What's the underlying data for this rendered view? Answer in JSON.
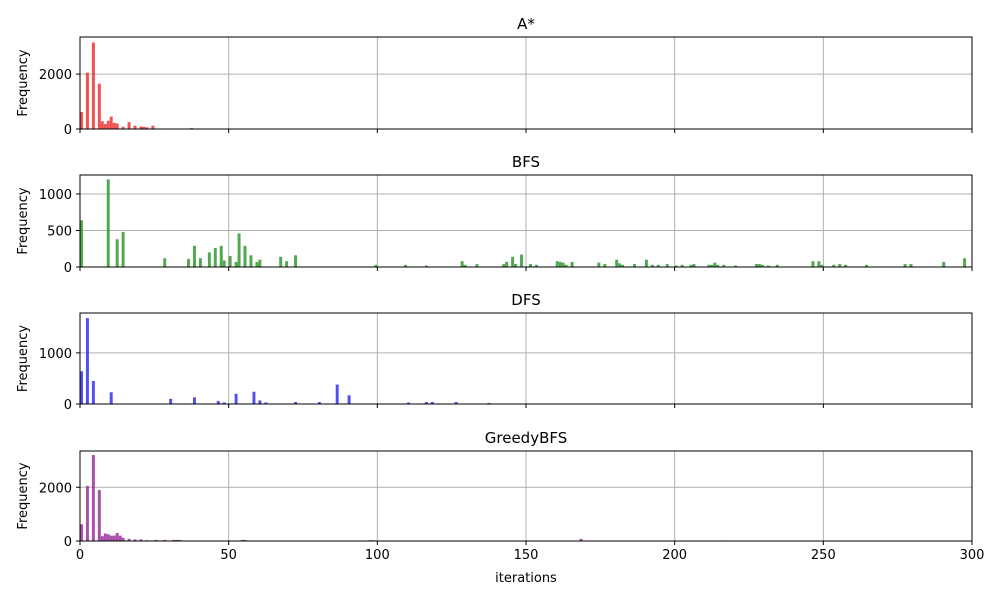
{
  "chart_data": [
    {
      "type": "bar",
      "title": "A*",
      "xlabel": "",
      "ylabel": "Frequency",
      "xlim": [
        0,
        300
      ],
      "ylim": [
        0,
        3350
      ],
      "xticks": [
        0,
        50,
        100,
        150,
        200,
        250,
        300
      ],
      "yticks": [
        0,
        2000
      ],
      "show_xtick_labels": false,
      "grid": true,
      "color": "#ee3333",
      "bin_width": 1,
      "x": [
        0,
        2,
        4,
        6,
        7,
        8,
        9,
        10,
        11,
        12,
        14,
        16,
        18,
        20,
        21,
        22,
        24,
        37
      ],
      "values": [
        620,
        2050,
        3150,
        1650,
        280,
        180,
        300,
        450,
        220,
        200,
        80,
        250,
        120,
        90,
        80,
        60,
        120,
        40
      ]
    },
    {
      "type": "bar",
      "title": "BFS",
      "xlabel": "",
      "ylabel": "Frequency",
      "xlim": [
        0,
        300
      ],
      "ylim": [
        0,
        1260
      ],
      "xticks": [
        0,
        50,
        100,
        150,
        200,
        250,
        300
      ],
      "yticks": [
        0,
        500,
        1000
      ],
      "show_xtick_labels": false,
      "grid": true,
      "color": "#339933",
      "bin_width": 1,
      "x": [
        0,
        9,
        12,
        14,
        28,
        36,
        38,
        40,
        43,
        45,
        47,
        48,
        50,
        52,
        53,
        55,
        57,
        59,
        60,
        67,
        69,
        72,
        99,
        109,
        116,
        128,
        129,
        133,
        142,
        143,
        145,
        146,
        148,
        151,
        153,
        160,
        161,
        162,
        163,
        165,
        174,
        176,
        180,
        181,
        182,
        186,
        190,
        192,
        194,
        197,
        200,
        202,
        205,
        206,
        211,
        212,
        213,
        214,
        216,
        220,
        227,
        228,
        229,
        231,
        234,
        246,
        248,
        249,
        253,
        255,
        257,
        264,
        277,
        279,
        290,
        297
      ],
      "values": [
        640,
        1200,
        380,
        480,
        120,
        110,
        290,
        120,
        200,
        260,
        290,
        90,
        150,
        70,
        460,
        290,
        160,
        70,
        100,
        140,
        80,
        160,
        30,
        30,
        20,
        80,
        30,
        40,
        40,
        70,
        140,
        40,
        170,
        40,
        30,
        80,
        70,
        60,
        30,
        70,
        60,
        40,
        100,
        50,
        30,
        40,
        100,
        30,
        30,
        40,
        20,
        30,
        30,
        40,
        30,
        30,
        60,
        30,
        30,
        20,
        40,
        40,
        30,
        20,
        30,
        80,
        80,
        30,
        30,
        40,
        30,
        30,
        40,
        40,
        70,
        120
      ]
    },
    {
      "type": "bar",
      "title": "DFS",
      "xlabel": "",
      "ylabel": "Frequency",
      "xlim": [
        0,
        300
      ],
      "ylim": [
        0,
        1780
      ],
      "xticks": [
        0,
        50,
        100,
        150,
        200,
        250,
        300
      ],
      "yticks": [
        0,
        1000
      ],
      "show_xtick_labels": false,
      "grid": true,
      "color": "#3333ee",
      "bin_width": 1,
      "x": [
        0,
        2,
        4,
        10,
        30,
        38,
        46,
        48,
        52,
        58,
        60,
        62,
        72,
        80,
        86,
        90,
        110,
        116,
        118,
        126,
        137
      ],
      "values": [
        640,
        1680,
        450,
        230,
        100,
        130,
        60,
        30,
        200,
        240,
        70,
        30,
        40,
        40,
        380,
        170,
        30,
        40,
        40,
        40,
        20
      ]
    },
    {
      "type": "bar",
      "title": "GreedyBFS",
      "xlabel": "iterations",
      "ylabel": "Frequency",
      "xlim": [
        0,
        300
      ],
      "ylim": [
        0,
        3350
      ],
      "xticks": [
        0,
        50,
        100,
        150,
        200,
        250,
        300
      ],
      "yticks": [
        0,
        2000
      ],
      "show_xtick_labels": true,
      "grid": true,
      "color": "#993399",
      "bin_width": 1,
      "x": [
        0,
        2,
        4,
        6,
        7,
        8,
        9,
        10,
        11,
        12,
        13,
        14,
        16,
        18,
        20,
        22,
        25,
        28,
        31,
        32,
        33,
        54,
        55,
        97,
        98,
        168,
        217
      ],
      "values": [
        620,
        2050,
        3200,
        1900,
        180,
        280,
        250,
        200,
        200,
        300,
        200,
        120,
        80,
        60,
        60,
        30,
        40,
        40,
        40,
        40,
        40,
        40,
        40,
        30,
        30,
        80,
        20
      ]
    }
  ]
}
